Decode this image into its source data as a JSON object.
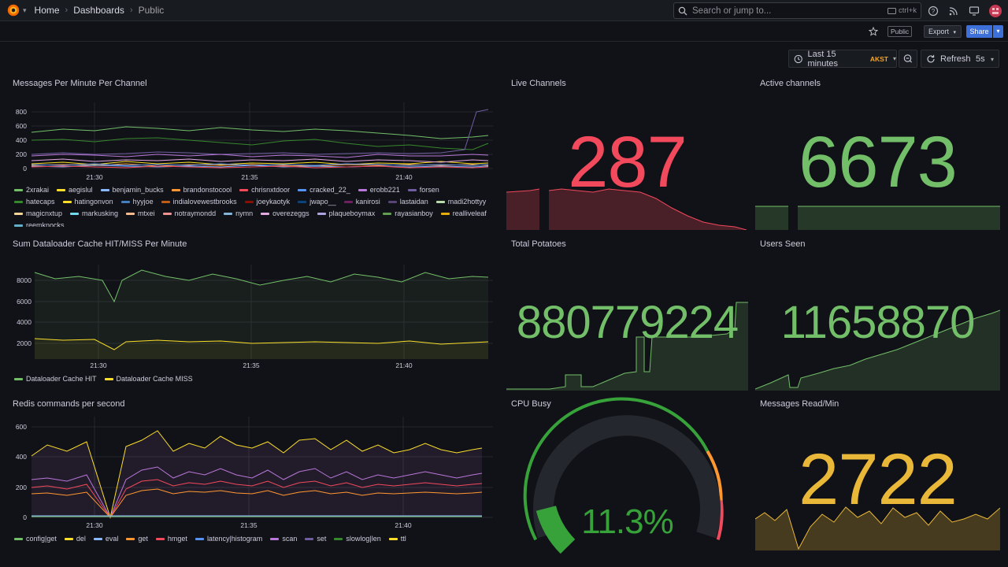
{
  "topbar": {
    "breadcrumbs": [
      "Home",
      "Dashboards",
      "Public"
    ],
    "search_placeholder": "Search or jump to...",
    "search_shortcut": "ctrl+k"
  },
  "toolbar": {
    "public_badge": "Public",
    "export_label": "Export",
    "share_label": "Share",
    "time_range": "Last 15 minutes",
    "timezone": "AKST",
    "refresh_label": "Refresh",
    "refresh_interval": "5s"
  },
  "panels": {
    "messages": {
      "title": "Messages Per Minute Per Channel",
      "yticks": [
        "800",
        "600",
        "400",
        "200",
        "0"
      ],
      "xticks": [
        "21:30",
        "21:35",
        "21:40"
      ],
      "legend": [
        {
          "name": "2xrakai",
          "color": "#73bf69"
        },
        {
          "name": "aegislul",
          "color": "#fade2a"
        },
        {
          "name": "benjamin_bucks",
          "color": "#8ab8ff"
        },
        {
          "name": "brandonstocool",
          "color": "#ff9830"
        },
        {
          "name": "chrisnxtdoor",
          "color": "#f2495c"
        },
        {
          "name": "cracked_22_",
          "color": "#5794f2"
        },
        {
          "name": "erobb221",
          "color": "#b877d9"
        },
        {
          "name": "forsen",
          "color": "#705da0"
        },
        {
          "name": "hatecaps",
          "color": "#37872d"
        },
        {
          "name": "hatingonvon",
          "color": "#fade2a"
        },
        {
          "name": "hyyjoe",
          "color": "#447ebc"
        },
        {
          "name": "indialovewestbrooks",
          "color": "#c15c17"
        },
        {
          "name": "joeykaotyk",
          "color": "#890f02"
        },
        {
          "name": "jwapo__",
          "color": "#0a437c"
        },
        {
          "name": "kanirosi",
          "color": "#6d1f62"
        },
        {
          "name": "lastaidan",
          "color": "#584477"
        },
        {
          "name": "madi2hottyy",
          "color": "#b7dbab"
        },
        {
          "name": "magicnxtup",
          "color": "#f4d598"
        },
        {
          "name": "markusking",
          "color": "#70dbed"
        },
        {
          "name": "mtxei",
          "color": "#f9ba8f"
        },
        {
          "name": "notraymondd",
          "color": "#f29191"
        },
        {
          "name": "nymn",
          "color": "#82b5d8"
        },
        {
          "name": "overezeggs",
          "color": "#e5a8e2"
        },
        {
          "name": "plaqueboymax",
          "color": "#aea2e0"
        },
        {
          "name": "rayasianboy",
          "color": "#629e51"
        },
        {
          "name": "realliveleaf",
          "color": "#e5ac0e"
        },
        {
          "name": "reemknocks",
          "color": "#64b0c8"
        }
      ]
    },
    "dataloader": {
      "title": "Sum Dataloader Cache HIT/MISS Per Minute",
      "yticks": [
        "8000",
        "6000",
        "4000",
        "2000"
      ],
      "xticks": [
        "21:30",
        "21:35",
        "21:40"
      ],
      "legend": [
        {
          "name": "Dataloader Cache HIT",
          "color": "#73bf69"
        },
        {
          "name": "Dataloader Cache MISS",
          "color": "#fade2a"
        }
      ]
    },
    "redis": {
      "title": "Redis commands per second",
      "yticks": [
        "600",
        "400",
        "200",
        "0"
      ],
      "xticks": [
        "21:30",
        "21:35",
        "21:40"
      ],
      "legend": [
        {
          "name": "config|get",
          "color": "#73bf69"
        },
        {
          "name": "del",
          "color": "#fade2a"
        },
        {
          "name": "eval",
          "color": "#8ab8ff"
        },
        {
          "name": "get",
          "color": "#ff9830"
        },
        {
          "name": "hmget",
          "color": "#f2495c"
        },
        {
          "name": "latency|histogram",
          "color": "#5794f2"
        },
        {
          "name": "scan",
          "color": "#b877d9"
        },
        {
          "name": "set",
          "color": "#705da0"
        },
        {
          "name": "slowlog|len",
          "color": "#37872d"
        },
        {
          "name": "ttl",
          "color": "#fade2a"
        }
      ]
    },
    "live_channels": {
      "title": "Live Channels",
      "value": "287",
      "color": "#f2495c"
    },
    "active_channels": {
      "title": "Active channels",
      "value": "6673",
      "color": "#73bf69"
    },
    "total_potatoes": {
      "title": "Total Potatoes",
      "value": "880779224",
      "color": "#73bf69"
    },
    "users_seen": {
      "title": "Users Seen",
      "value": "11658870",
      "color": "#73bf69"
    },
    "cpu_busy": {
      "title": "CPU Busy",
      "value": "11.3%",
      "color": "#37a23a",
      "fraction": 0.113
    },
    "messages_read": {
      "title": "Messages Read/Min",
      "value": "2722",
      "color": "#eab839"
    }
  }
}
